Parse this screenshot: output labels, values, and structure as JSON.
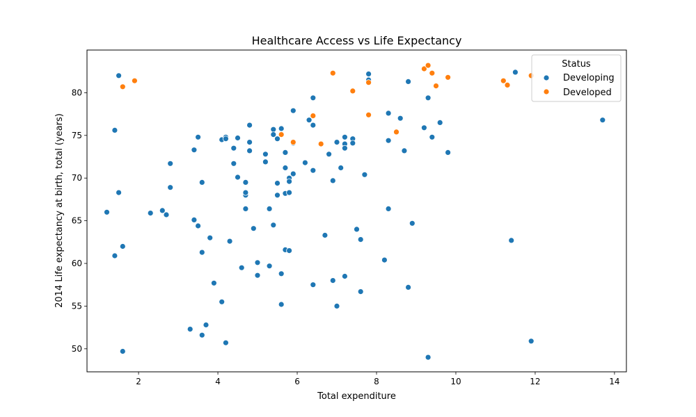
{
  "chart_data": {
    "type": "scatter",
    "title": "Healthcare Access vs Life Expectancy",
    "xlabel": "Total expenditure",
    "ylabel": "2014 Life expectancy at birth, total (years)",
    "xlim": [
      0.7,
      14.3
    ],
    "ylim": [
      47.3,
      85.0
    ],
    "xticks": [
      2,
      4,
      6,
      8,
      10,
      12,
      14
    ],
    "yticks": [
      50,
      55,
      60,
      65,
      70,
      75,
      80
    ],
    "grid": false,
    "legend": {
      "title": "Status",
      "placement": "top-right"
    },
    "series": [
      {
        "name": "Developing",
        "color": "#1f77b4",
        "points": [
          [
            1.2,
            66.0
          ],
          [
            1.4,
            75.6
          ],
          [
            1.5,
            82.0
          ],
          [
            1.5,
            68.3
          ],
          [
            1.4,
            60.9
          ],
          [
            1.6,
            62.0
          ],
          [
            1.6,
            49.7
          ],
          [
            2.3,
            65.9
          ],
          [
            2.6,
            66.2
          ],
          [
            2.7,
            65.7
          ],
          [
            2.8,
            71.7
          ],
          [
            2.8,
            68.9
          ],
          [
            3.3,
            52.3
          ],
          [
            3.4,
            73.3
          ],
          [
            3.4,
            65.1
          ],
          [
            3.5,
            64.4
          ],
          [
            3.5,
            74.8
          ],
          [
            3.6,
            69.5
          ],
          [
            3.6,
            61.3
          ],
          [
            3.6,
            51.6
          ],
          [
            3.7,
            52.8
          ],
          [
            3.8,
            63.0
          ],
          [
            3.9,
            57.7
          ],
          [
            4.1,
            74.5
          ],
          [
            4.1,
            55.5
          ],
          [
            4.2,
            74.8
          ],
          [
            4.2,
            74.6
          ],
          [
            4.2,
            50.7
          ],
          [
            4.3,
            62.6
          ],
          [
            4.4,
            73.5
          ],
          [
            4.4,
            71.7
          ],
          [
            4.5,
            74.7
          ],
          [
            4.5,
            70.1
          ],
          [
            4.6,
            59.5
          ],
          [
            4.7,
            66.4
          ],
          [
            4.7,
            68.0
          ],
          [
            4.7,
            68.3
          ],
          [
            4.7,
            69.5
          ],
          [
            4.8,
            76.2
          ],
          [
            4.8,
            73.2
          ],
          [
            4.8,
            74.2
          ],
          [
            4.9,
            64.1
          ],
          [
            5.0,
            60.1
          ],
          [
            5.0,
            58.6
          ],
          [
            5.2,
            72.8
          ],
          [
            5.2,
            71.9
          ],
          [
            5.3,
            66.4
          ],
          [
            5.3,
            59.7
          ],
          [
            5.4,
            75.7
          ],
          [
            5.4,
            75.1
          ],
          [
            5.4,
            64.5
          ],
          [
            5.5,
            74.6
          ],
          [
            5.5,
            68.0
          ],
          [
            5.5,
            69.4
          ],
          [
            5.6,
            75.8
          ],
          [
            5.6,
            55.2
          ],
          [
            5.6,
            58.8
          ],
          [
            5.7,
            73.0
          ],
          [
            5.7,
            71.2
          ],
          [
            5.7,
            68.2
          ],
          [
            5.7,
            61.6
          ],
          [
            5.8,
            70.0
          ],
          [
            5.8,
            69.6
          ],
          [
            5.8,
            68.3
          ],
          [
            5.8,
            61.5
          ],
          [
            5.9,
            77.9
          ],
          [
            5.9,
            74.1
          ],
          [
            5.9,
            70.5
          ],
          [
            6.2,
            71.8
          ],
          [
            6.3,
            76.8
          ],
          [
            6.4,
            79.4
          ],
          [
            6.4,
            70.9
          ],
          [
            6.4,
            76.2
          ],
          [
            6.4,
            57.5
          ],
          [
            6.7,
            63.3
          ],
          [
            6.8,
            72.8
          ],
          [
            6.9,
            69.7
          ],
          [
            6.9,
            58.0
          ],
          [
            7.0,
            74.2
          ],
          [
            7.0,
            55.0
          ],
          [
            7.1,
            71.2
          ],
          [
            7.2,
            74.8
          ],
          [
            7.2,
            74.0
          ],
          [
            7.2,
            73.5
          ],
          [
            7.2,
            58.5
          ],
          [
            7.4,
            74.6
          ],
          [
            7.4,
            74.1
          ],
          [
            7.5,
            64.0
          ],
          [
            7.6,
            56.7
          ],
          [
            7.6,
            62.8
          ],
          [
            7.7,
            70.4
          ],
          [
            7.8,
            81.5
          ],
          [
            7.8,
            82.2
          ],
          [
            8.2,
            60.4
          ],
          [
            8.3,
            77.6
          ],
          [
            8.3,
            74.4
          ],
          [
            8.3,
            66.4
          ],
          [
            8.6,
            77.0
          ],
          [
            8.7,
            73.2
          ],
          [
            8.8,
            81.3
          ],
          [
            8.8,
            57.2
          ],
          [
            8.9,
            64.7
          ],
          [
            9.2,
            75.9
          ],
          [
            9.3,
            79.4
          ],
          [
            9.3,
            49.0
          ],
          [
            9.4,
            74.8
          ],
          [
            9.6,
            76.5
          ],
          [
            9.8,
            73.0
          ],
          [
            11.4,
            62.7
          ],
          [
            11.5,
            82.4
          ],
          [
            11.9,
            50.9
          ],
          [
            13.7,
            76.8
          ]
        ]
      },
      {
        "name": "Developed",
        "color": "#ff7f0e",
        "points": [
          [
            1.6,
            80.7
          ],
          [
            1.9,
            81.4
          ],
          [
            5.6,
            75.1
          ],
          [
            5.9,
            74.2
          ],
          [
            6.4,
            77.3
          ],
          [
            6.6,
            74.0
          ],
          [
            6.9,
            82.3
          ],
          [
            7.4,
            80.2
          ],
          [
            7.8,
            81.2
          ],
          [
            7.8,
            77.4
          ],
          [
            8.5,
            75.4
          ],
          [
            9.2,
            82.8
          ],
          [
            9.3,
            83.2
          ],
          [
            9.4,
            82.3
          ],
          [
            9.5,
            80.8
          ],
          [
            9.8,
            81.8
          ],
          [
            11.2,
            81.4
          ],
          [
            11.3,
            80.9
          ],
          [
            11.9,
            82.0
          ]
        ]
      }
    ]
  }
}
